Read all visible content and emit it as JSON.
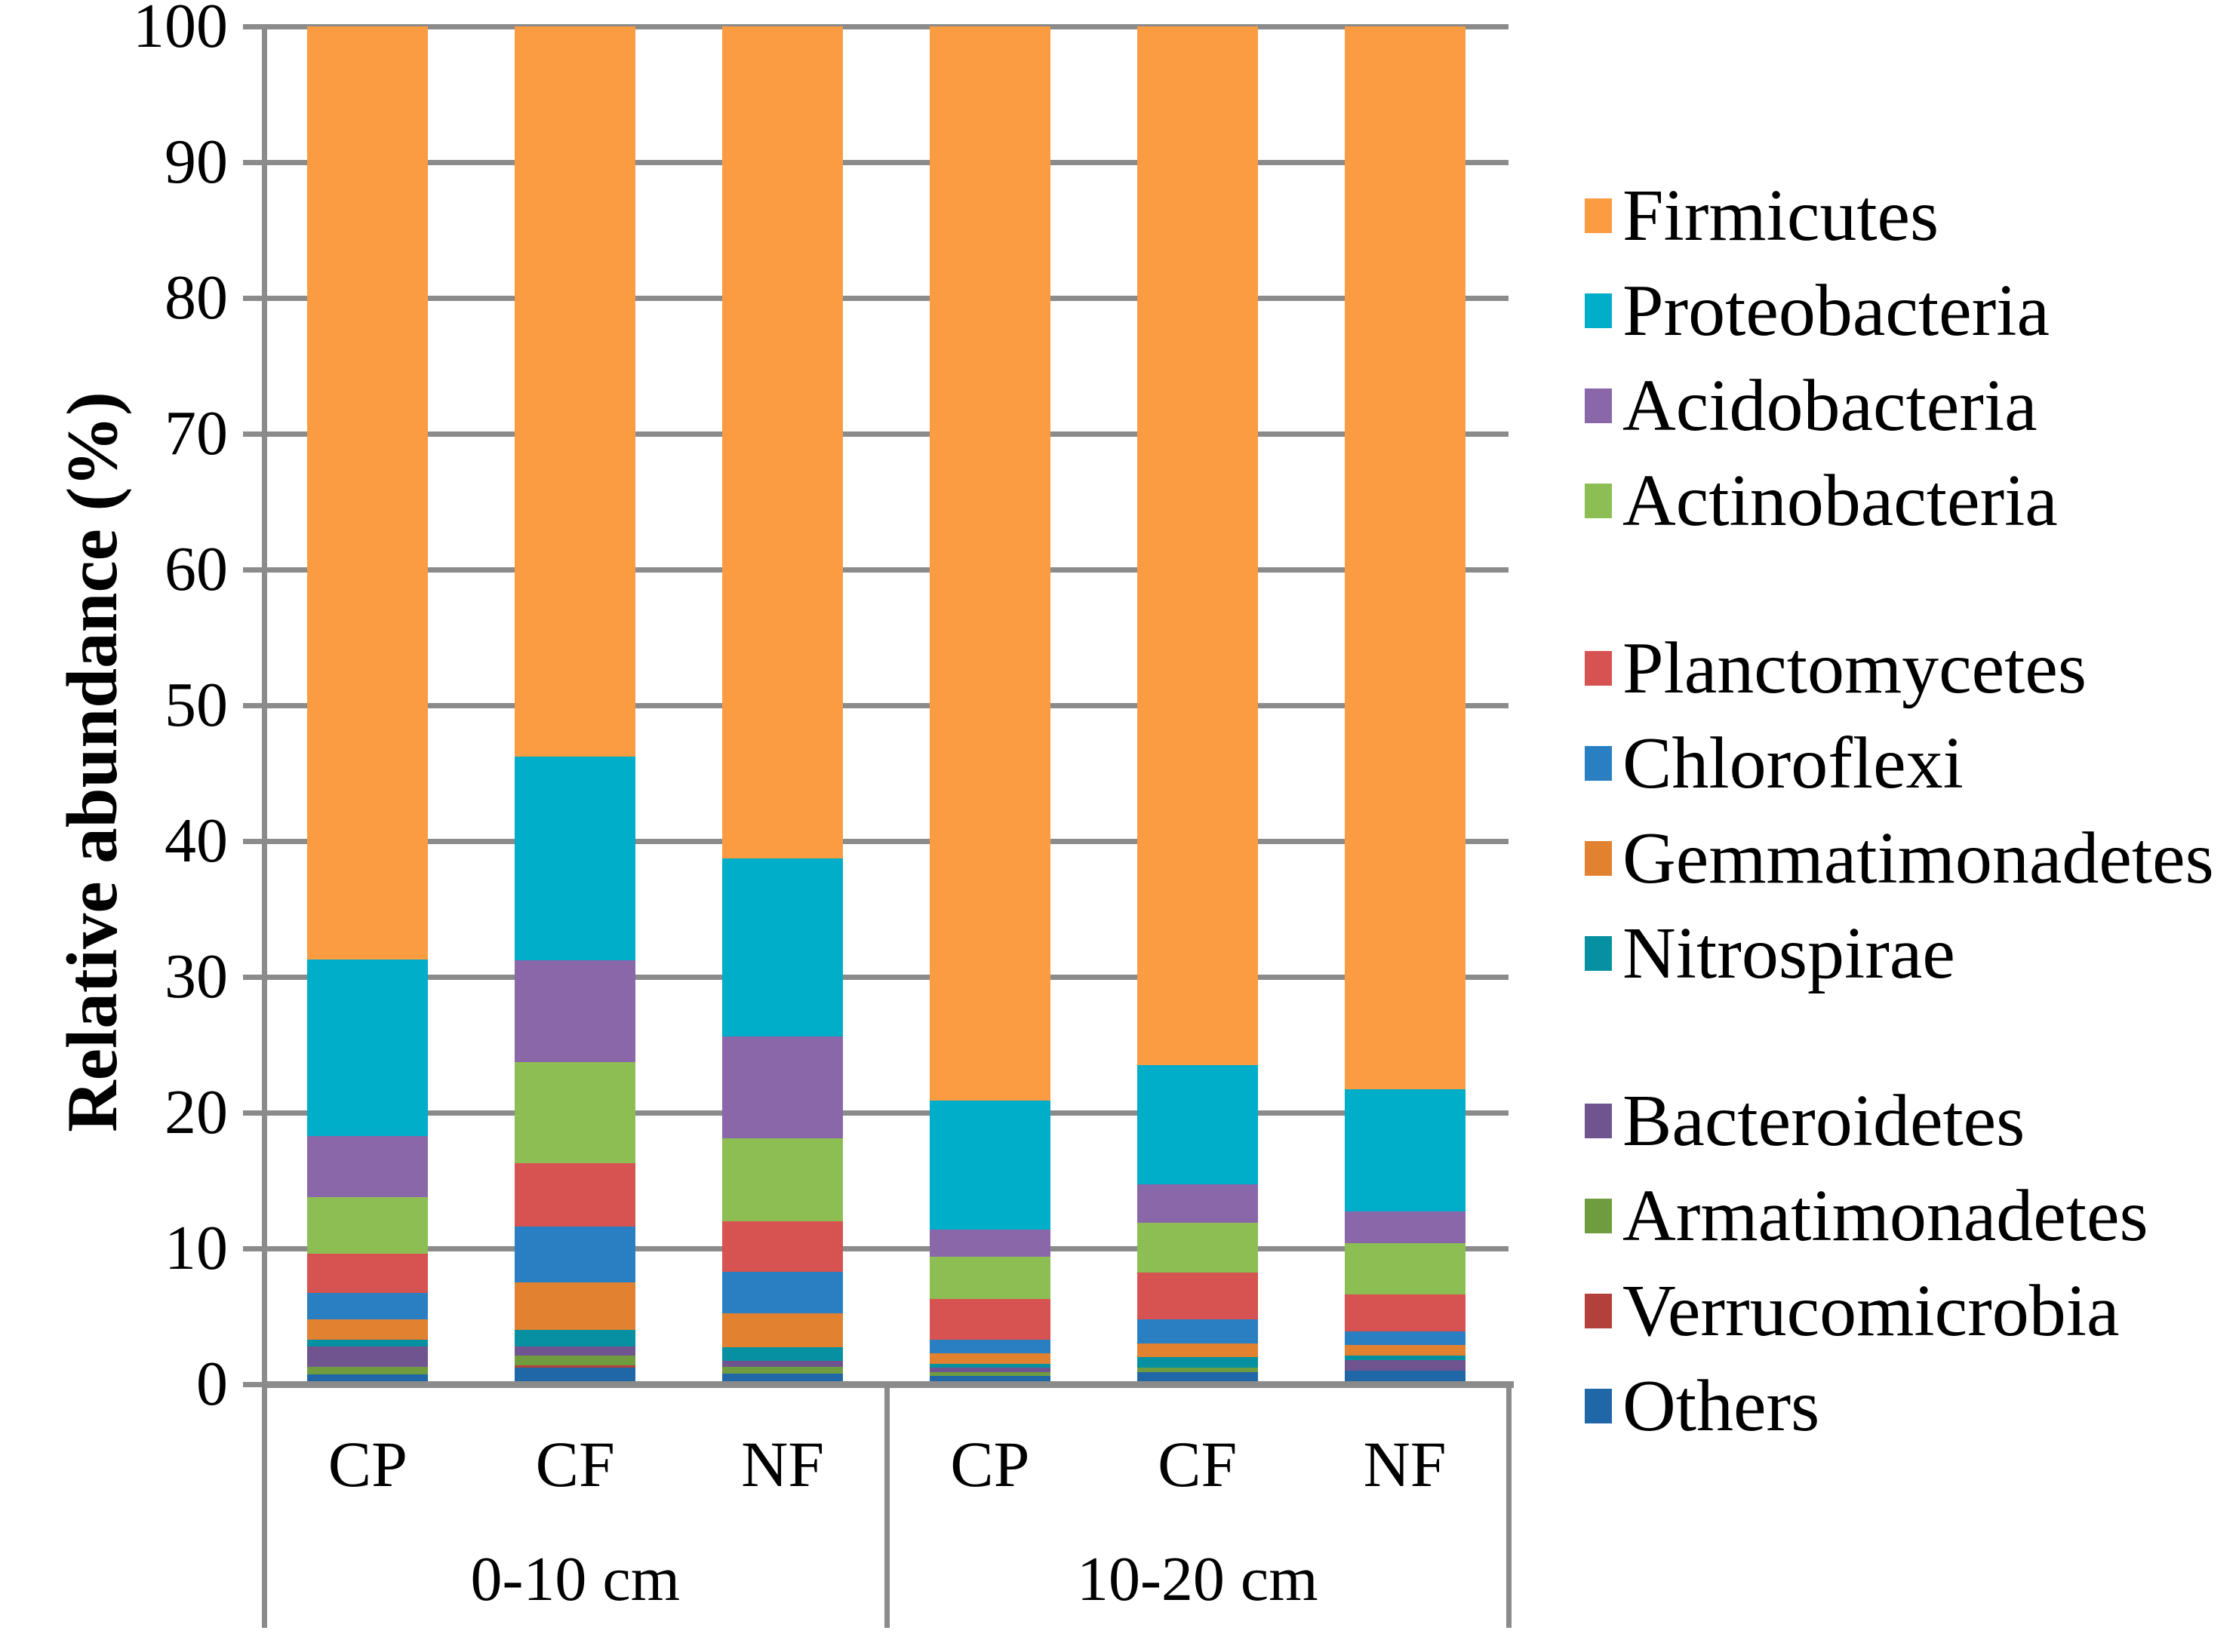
{
  "chart_data": {
    "type": "bar",
    "stacked": true,
    "title": "",
    "xlabel": "",
    "ylabel": "Relative abundance (%)",
    "ylim": [
      0,
      100
    ],
    "yticks": [
      0,
      10,
      20,
      30,
      40,
      50,
      60,
      70,
      80,
      90,
      100
    ],
    "grid": true,
    "legend_position": "right",
    "groups": [
      {
        "label": "0-10 cm",
        "categories": [
          "CP",
          "CF",
          "NF"
        ]
      },
      {
        "label": "10-20 cm",
        "categories": [
          "CP",
          "CF",
          "NF"
        ]
      }
    ],
    "categories": [
      "CP",
      "CF",
      "NF",
      "CP",
      "CF",
      "NF"
    ],
    "series": [
      {
        "name": "Firmicutes",
        "color": "#FB9C42",
        "values": [
          68.7,
          53.8,
          61.3,
          79.1,
          76.5,
          78.3
        ]
      },
      {
        "name": "Proteobacteria",
        "color": "#00AEC9",
        "values": [
          13.0,
          15.0,
          13.1,
          9.5,
          8.8,
          9.0
        ]
      },
      {
        "name": "Acidobacteria",
        "color": "#8A67A9",
        "values": [
          4.5,
          7.5,
          7.5,
          2.0,
          2.8,
          2.3
        ]
      },
      {
        "name": "Actinobacteria",
        "color": "#8CBE53",
        "values": [
          4.2,
          7.4,
          6.1,
          3.1,
          3.7,
          3.8
        ]
      },
      {
        "name": "Planctomycetes",
        "color": "#D75351",
        "values": [
          2.9,
          4.7,
          3.7,
          3.0,
          3.4,
          2.7
        ]
      },
      {
        "name": "Chloroflexi",
        "color": "#297FC2",
        "values": [
          1.9,
          4.1,
          3.1,
          1.0,
          1.8,
          1.0
        ]
      },
      {
        "name": "Gemmatimonadetes",
        "color": "#E2812F",
        "values": [
          1.5,
          3.5,
          2.5,
          0.8,
          1.0,
          0.8
        ]
      },
      {
        "name": "Nitrospirae",
        "color": "#0790A1",
        "values": [
          0.5,
          1.2,
          1.0,
          0.3,
          0.8,
          0.3
        ]
      },
      {
        "name": "Bacteroidetes",
        "color": "#6F5490",
        "values": [
          1.5,
          0.7,
          0.4,
          0.3,
          0.0,
          0.8
        ]
      },
      {
        "name": "Armatimonadetes",
        "color": "#6F9C3E",
        "values": [
          0.6,
          0.7,
          0.5,
          0.3,
          0.3,
          0.0
        ]
      },
      {
        "name": "Verrucomicrobia",
        "color": "#B4403B",
        "values": [
          0.0,
          0.2,
          0.0,
          0.0,
          0.0,
          0.0
        ]
      },
      {
        "name": "Others",
        "color": "#2067A7",
        "values": [
          0.7,
          1.2,
          0.8,
          0.6,
          0.9,
          1.0
        ]
      }
    ]
  },
  "colors": {
    "gridline": "#8B8B8B",
    "axis_line": "#8B8B8B",
    "text": "#000000",
    "background": "#FFFFFF"
  }
}
